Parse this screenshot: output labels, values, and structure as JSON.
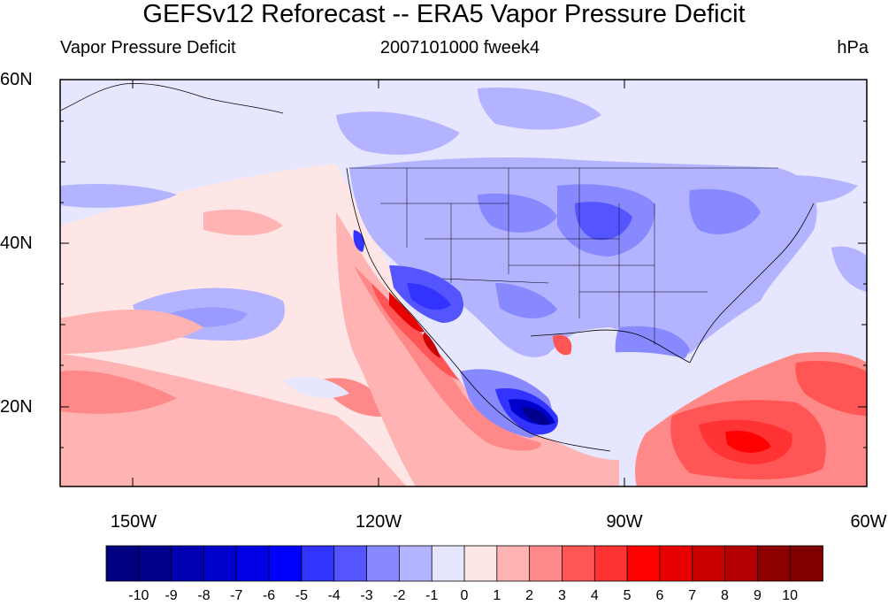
{
  "title": "GEFSv12 Reforecast -- ERA5 Vapor Pressure Deficit",
  "subtitle_left": "Vapor Pressure Deficit",
  "subtitle_center": "2007101000 fweek4",
  "subtitle_right": "hPa",
  "map": {
    "lon_range": [
      -160,
      -60
    ],
    "lat_range": [
      10,
      60
    ],
    "lat_labels": [
      "60N",
      "40N",
      "20N"
    ],
    "lon_labels": [
      "150W",
      "120W",
      "90W",
      "60W"
    ]
  },
  "colorbar": {
    "ticks": [
      "-10",
      "-9",
      "-8",
      "-7",
      "-6",
      "-5",
      "-4",
      "-3",
      "-2",
      "-1",
      "0",
      "1",
      "2",
      "3",
      "4",
      "5",
      "6",
      "7",
      "8",
      "9",
      "10"
    ],
    "colors": [
      "#000080",
      "#00008c",
      "#0000b2",
      "#0000cc",
      "#0000e6",
      "#0000ff",
      "#3333ff",
      "#5555ff",
      "#8888ff",
      "#b3b3ff",
      "#e6e6ff",
      "#ffe6e6",
      "#ffb3b3",
      "#ff8888",
      "#ff5555",
      "#ff3333",
      "#ff0000",
      "#e60000",
      "#cc0000",
      "#b20000",
      "#8c0000",
      "#800000"
    ]
  }
}
